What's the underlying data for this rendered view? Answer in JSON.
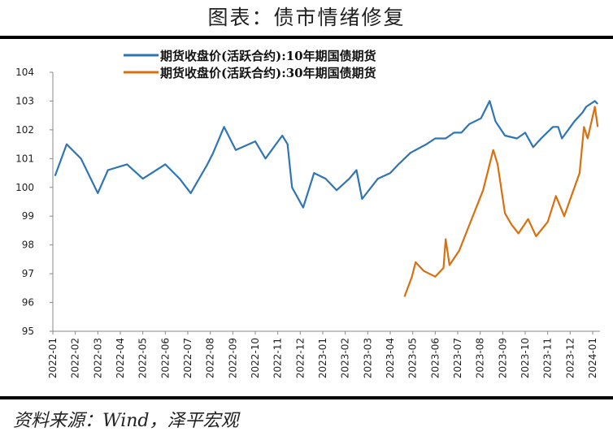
{
  "title": "图表：债市情绪修复",
  "source": "资料来源：Wind，泽平宏观",
  "chart_data": {
    "type": "line",
    "title": "图表：债市情绪修复",
    "xlabel": "",
    "ylabel": "",
    "ylim": [
      95,
      104
    ],
    "yticks": [
      "95",
      "96",
      "97",
      "98",
      "99",
      "100",
      "101",
      "102",
      "103",
      "104"
    ],
    "xticks": [
      "2022-01",
      "2022-02",
      "2022-03",
      "2022-04",
      "2022-05",
      "2022-06",
      "2022-07",
      "2022-08",
      "2022-09",
      "2022-10",
      "2022-11",
      "2022-12",
      "2023-01",
      "2023-02",
      "2023-03",
      "2023-04",
      "2023-05",
      "2023-06",
      "2023-07",
      "2023-08",
      "2023-09",
      "2023-10",
      "2023-11",
      "2023-12",
      "2024-01"
    ],
    "grid": false,
    "legend_position": "top-center",
    "series": [
      {
        "name": "期货收盘价(活跃合约):10年期国债期货",
        "color": "#2E75B6",
        "points": [
          [
            "2022-01-04",
            100.4
          ],
          [
            "2022-01-20",
            101.5
          ],
          [
            "2022-02-08",
            101.0
          ],
          [
            "2022-03-01",
            99.8
          ],
          [
            "2022-03-15",
            100.6
          ],
          [
            "2022-04-10",
            100.8
          ],
          [
            "2022-05-01",
            100.3
          ],
          [
            "2022-06-01",
            100.8
          ],
          [
            "2022-06-20",
            100.3
          ],
          [
            "2022-07-05",
            99.8
          ],
          [
            "2022-07-28",
            100.8
          ],
          [
            "2022-08-05",
            101.2
          ],
          [
            "2022-08-20",
            102.1
          ],
          [
            "2022-09-05",
            101.3
          ],
          [
            "2022-10-01",
            101.6
          ],
          [
            "2022-10-15",
            101.0
          ],
          [
            "2022-11-07",
            101.8
          ],
          [
            "2022-11-14",
            101.5
          ],
          [
            "2022-11-20",
            100.0
          ],
          [
            "2022-12-05",
            99.3
          ],
          [
            "2022-12-20",
            100.5
          ],
          [
            "2023-01-05",
            100.3
          ],
          [
            "2023-01-20",
            99.9
          ],
          [
            "2023-02-06",
            100.3
          ],
          [
            "2023-02-15",
            100.6
          ],
          [
            "2023-02-22",
            99.6
          ],
          [
            "2023-03-15",
            100.3
          ],
          [
            "2023-04-01",
            100.5
          ],
          [
            "2023-04-12",
            100.8
          ],
          [
            "2023-04-28",
            101.2
          ],
          [
            "2023-05-20",
            101.5
          ],
          [
            "2023-06-01",
            101.7
          ],
          [
            "2023-06-15",
            101.7
          ],
          [
            "2023-06-26",
            101.9
          ],
          [
            "2023-07-06",
            101.9
          ],
          [
            "2023-07-17",
            102.2
          ],
          [
            "2023-08-02",
            102.4
          ],
          [
            "2023-08-14",
            103.0
          ],
          [
            "2023-08-22",
            102.3
          ],
          [
            "2023-09-04",
            101.8
          ],
          [
            "2023-09-20",
            101.7
          ],
          [
            "2023-10-01",
            101.9
          ],
          [
            "2023-10-12",
            101.4
          ],
          [
            "2023-10-23",
            101.7
          ],
          [
            "2023-11-08",
            102.1
          ],
          [
            "2023-11-15",
            102.1
          ],
          [
            "2023-11-20",
            101.7
          ],
          [
            "2023-12-07",
            102.3
          ],
          [
            "2023-12-18",
            102.6
          ],
          [
            "2023-12-23",
            102.8
          ],
          [
            "2024-01-04",
            103.0
          ],
          [
            "2024-01-08",
            102.9
          ]
        ]
      },
      {
        "name": "期货收盘价(活跃合约):30年期国债期货",
        "color": "#D9700F",
        "points": [
          [
            "2023-04-20",
            96.2
          ],
          [
            "2023-04-30",
            96.9
          ],
          [
            "2023-05-05",
            97.4
          ],
          [
            "2023-05-16",
            97.1
          ],
          [
            "2023-06-01",
            96.9
          ],
          [
            "2023-06-12",
            97.2
          ],
          [
            "2023-06-15",
            98.2
          ],
          [
            "2023-06-20",
            97.3
          ],
          [
            "2023-07-03",
            97.8
          ],
          [
            "2023-07-14",
            98.5
          ],
          [
            "2023-07-25",
            99.2
          ],
          [
            "2023-08-05",
            99.9
          ],
          [
            "2023-08-19",
            101.3
          ],
          [
            "2023-08-25",
            100.8
          ],
          [
            "2023-09-04",
            99.1
          ],
          [
            "2023-09-13",
            98.7
          ],
          [
            "2023-09-22",
            98.4
          ],
          [
            "2023-10-05",
            98.9
          ],
          [
            "2023-10-16",
            98.3
          ],
          [
            "2023-11-01",
            98.8
          ],
          [
            "2023-11-12",
            99.7
          ],
          [
            "2023-11-23",
            99.0
          ],
          [
            "2023-12-14",
            100.5
          ],
          [
            "2023-12-20",
            102.1
          ],
          [
            "2023-12-25",
            101.7
          ],
          [
            "2024-01-04",
            102.8
          ],
          [
            "2024-01-08",
            102.1
          ]
        ]
      }
    ]
  }
}
